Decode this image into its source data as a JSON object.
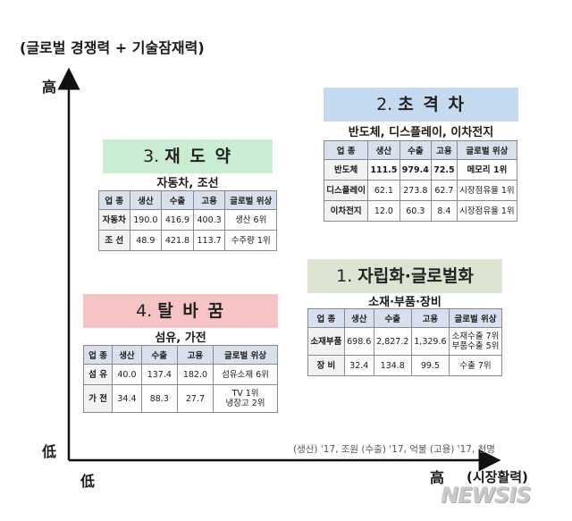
{
  "colors": {
    "blue_box": "#c5d9ef",
    "green_box": "#c9ecd3",
    "sage_box": "#dde5d2",
    "pink_box": "#f6c4c4",
    "axis": "#111111"
  },
  "chart_data": {
    "type": "table",
    "y_axis_label": "(글로벌 경쟁력 + 기술잠재력)",
    "x_axis_label": "(시장활력)",
    "y_high": "高",
    "y_low": "低",
    "x_low": "低",
    "x_high": "高",
    "quadrants": [
      {
        "num": "2.",
        "name": "초 격 차",
        "industries": "반도체, 디스플레이, 이차전지",
        "columns": [
          "업 종",
          "생산",
          "수출",
          "고용",
          "글로벌 위상"
        ],
        "rows": [
          {
            "cells": [
              "반도체",
              "111.5",
              "979.4",
              "72.5",
              "메모리 1위"
            ],
            "bold": true
          },
          {
            "cells": [
              "디스플레이",
              "62.1",
              "273.8",
              "62.7",
              "시장점유율 1위"
            ],
            "bold": false
          },
          {
            "cells": [
              "이차전지",
              "12.0",
              "60.3",
              "8.4",
              "시장점유율 1위"
            ],
            "bold": false
          }
        ]
      },
      {
        "num": "3.",
        "name": "재 도 약",
        "industries": "자동차, 조선",
        "columns": [
          "업 종",
          "생산",
          "수출",
          "고용",
          "글로벌 위상"
        ],
        "rows": [
          {
            "cells": [
              "자동차",
              "190.0",
              "416.9",
              "400.3",
              "생산 6위"
            ],
            "bold": false
          },
          {
            "cells": [
              "조 선",
              "48.9",
              "421.8",
              "113.7",
              "수주량 1위"
            ],
            "bold": false
          }
        ]
      },
      {
        "num": "1.",
        "name": "자립화·글로벌화",
        "industries": "소재·부품·장비",
        "columns": [
          "업 종",
          "생산",
          "수출",
          "고용",
          "글로벌 위상"
        ],
        "rows": [
          {
            "cells": [
              "소재부품",
              "698.6",
              "2,827.2",
              "1,329.6",
              "소재수출 7위\n부품수출 5위"
            ],
            "bold": false
          },
          {
            "cells": [
              "장 비",
              "32.4",
              "134.8",
              "99.5",
              "수출 7위"
            ],
            "bold": false
          }
        ]
      },
      {
        "num": "4.",
        "name": "탈 바 꿈",
        "industries": "섬유, 가전",
        "columns": [
          "업 종",
          "생산",
          "수출",
          "고용",
          "글로벌 위상"
        ],
        "rows": [
          {
            "cells": [
              "섬 유",
              "40.0",
              "137.4",
              "182.0",
              "섬유소재 6위"
            ],
            "bold": false
          },
          {
            "cells": [
              "가 전",
              "34.4",
              "88.3",
              "27.7",
              "TV 1위\n냉장고 2위"
            ],
            "bold": false
          }
        ]
      }
    ],
    "footnote": "(생산) '17, 조원  (수출) '17, 억불  (고용) '17, 천명"
  },
  "watermark": "NEWSIS"
}
